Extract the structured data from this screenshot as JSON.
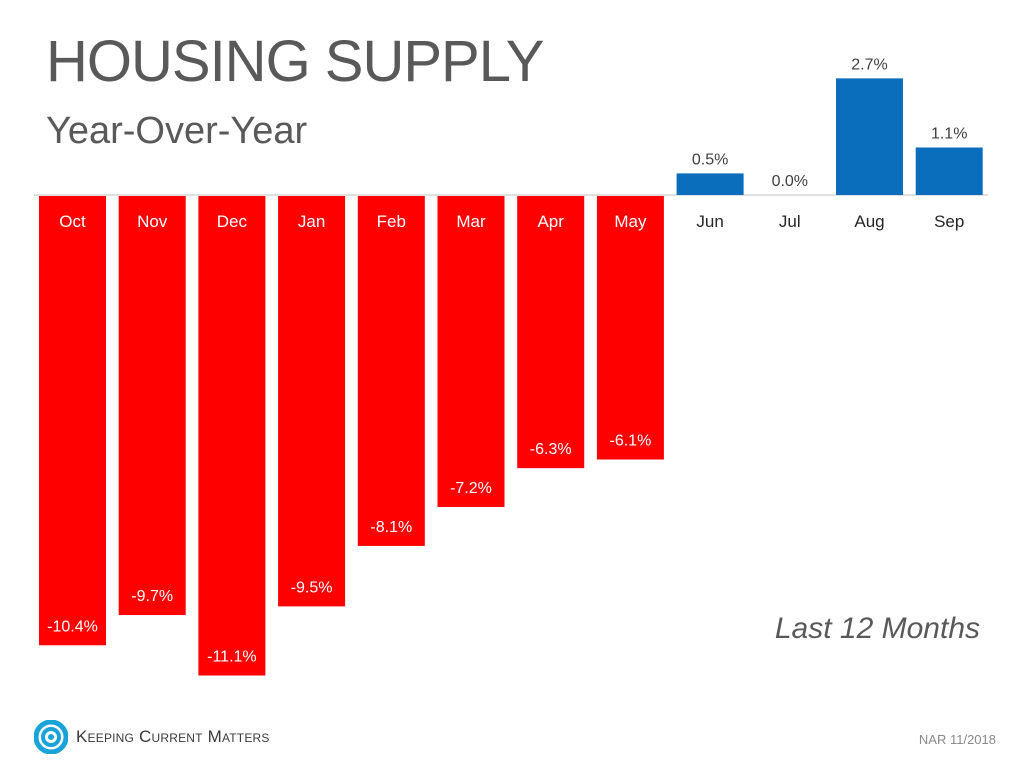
{
  "header": {
    "title": "HOUSING SUPPLY",
    "subtitle": "Year-Over-Year"
  },
  "annotation": "Last 12 Months",
  "footer": {
    "brand": "Keeping Current Matters",
    "source": "NAR 11/2018"
  },
  "colors": {
    "negative": "#ff0000",
    "positive": "#0a6ebd",
    "text": "#595959"
  },
  "chart_data": {
    "type": "bar",
    "title": "HOUSING SUPPLY",
    "subtitle": "Year-Over-Year",
    "xlabel": "",
    "ylabel": "",
    "categories": [
      "Oct",
      "Nov",
      "Dec",
      "Jan",
      "Feb",
      "Mar",
      "Apr",
      "May",
      "Jun",
      "Jul",
      "Aug",
      "Sep"
    ],
    "values": [
      -10.4,
      -9.7,
      -11.1,
      -9.5,
      -8.1,
      -7.2,
      -6.3,
      -6.1,
      0.5,
      0.0,
      2.7,
      1.1
    ],
    "labels": [
      "-10.4%",
      "-9.7%",
      "-11.1%",
      "-9.5%",
      "-8.1%",
      "-7.2%",
      "-6.3%",
      "-6.1%",
      "0.5%",
      "0.0%",
      "2.7%",
      "1.1%"
    ],
    "ylim": [
      -11.1,
      2.7
    ],
    "grid": false,
    "legend": "none"
  }
}
